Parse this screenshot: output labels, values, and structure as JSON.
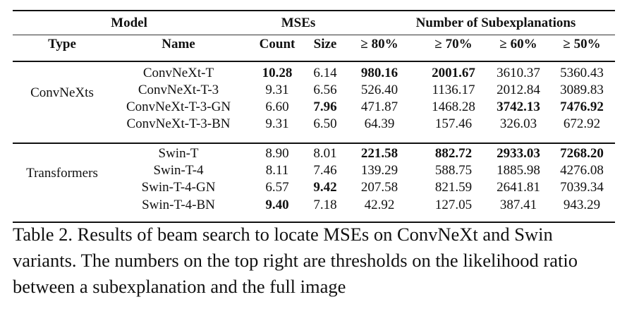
{
  "table": {
    "header_groups": {
      "model": "Model",
      "mses": "MSEs",
      "subexpl": "Number of Subexplanations"
    },
    "header_cols": {
      "type": "Type",
      "name": "Name",
      "count": "Count",
      "size": "Size",
      "t80": "≥ 80%",
      "t70": "≥ 70%",
      "t60": "≥ 60%",
      "t50": "≥ 50%"
    },
    "groups": [
      {
        "type": "ConvNeXts",
        "rows": [
          {
            "name": "ConvNeXt-T",
            "count": "10.28",
            "size": "6.14",
            "t80": "980.16",
            "t70": "2001.67",
            "t60": "3610.37",
            "t50": "5360.43"
          },
          {
            "name": "ConvNeXt-T-3",
            "count": "9.31",
            "size": "6.56",
            "t80": "526.40",
            "t70": "1136.17",
            "t60": "2012.84",
            "t50": "3089.83"
          },
          {
            "name": "ConvNeXt-T-3-GN",
            "count": "6.60",
            "size": "7.96",
            "t80": "471.87",
            "t70": "1468.28",
            "t60": "3742.13",
            "t50": "7476.92"
          },
          {
            "name": "ConvNeXt-T-3-BN",
            "count": "9.31",
            "size": "6.50",
            "t80": "64.39",
            "t70": "157.46",
            "t60": "326.03",
            "t50": "672.92"
          }
        ]
      },
      {
        "type": "Transformers",
        "rows": [
          {
            "name": "Swin-T",
            "count": "8.90",
            "size": "8.01",
            "t80": "221.58",
            "t70": "882.72",
            "t60": "2933.03",
            "t50": "7268.20"
          },
          {
            "name": "Swin-T-4",
            "count": "8.11",
            "size": "7.46",
            "t80": "139.29",
            "t70": "588.75",
            "t60": "1885.98",
            "t50": "4276.08"
          },
          {
            "name": "Swin-T-4-GN",
            "count": "6.57",
            "size": "9.42",
            "t80": "207.58",
            "t70": "821.59",
            "t60": "2641.81",
            "t50": "7039.34"
          },
          {
            "name": "Swin-T-4-BN",
            "count": "9.40",
            "size": "7.18",
            "t80": "42.92",
            "t70": "127.05",
            "t60": "387.41",
            "t50": "943.29"
          }
        ]
      }
    ]
  },
  "caption": "Table 2. Results of beam search to locate MSEs on ConvNeXt and Swin variants. The numbers on the top right are thresholds on the likelihood ratio between a subexplanation and the full image"
}
